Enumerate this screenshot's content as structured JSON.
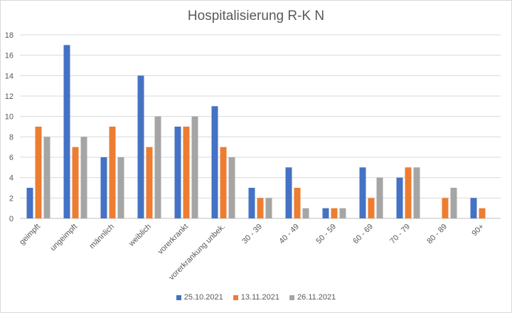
{
  "chart_data": {
    "type": "bar",
    "title": "Hospitalisierung R-K N",
    "categories": [
      "geimpft",
      "ungeimpft",
      "männlich",
      "weiblich",
      "vorerkrankt",
      "vorerkrankung unbek.",
      "30 - 39",
      "40 - 49",
      "50 - 59",
      "60 - 69",
      "70 - 79",
      "80 - 89",
      "90+"
    ],
    "series": [
      {
        "name": "25.10.2021",
        "color": "#4472c4",
        "values": [
          3,
          17,
          6,
          14,
          9,
          11,
          3,
          5,
          1,
          5,
          4,
          0,
          2
        ]
      },
      {
        "name": "13.11.2021",
        "color": "#ed7d31",
        "values": [
          9,
          7,
          9,
          7,
          9,
          7,
          2,
          3,
          1,
          2,
          5,
          2,
          1
        ]
      },
      {
        "name": "26.11.2021",
        "color": "#a5a5a5",
        "values": [
          8,
          8,
          6,
          10,
          10,
          6,
          2,
          1,
          1,
          4,
          5,
          3,
          0
        ]
      }
    ],
    "ylim": [
      0,
      18
    ],
    "yticks": [
      0,
      2,
      4,
      6,
      8,
      10,
      12,
      14,
      16,
      18
    ],
    "grid": true,
    "legend_position": "bottom"
  }
}
